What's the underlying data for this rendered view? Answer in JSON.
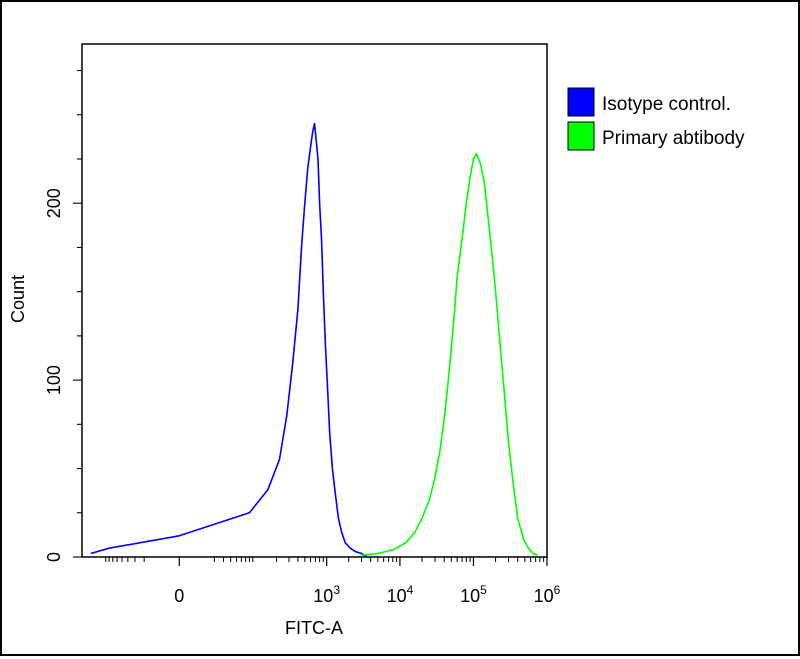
{
  "chart_data": {
    "type": "area",
    "title": "",
    "xlabel": "FITC-A",
    "ylabel": "Count",
    "x_scale": "biexponential",
    "xlim": [
      -200,
      1000000
    ],
    "ylim": [
      0,
      290
    ],
    "x_ticks": [
      {
        "value": 0,
        "base": "0",
        "exp": ""
      },
      {
        "value": 1000,
        "base": "10",
        "exp": "3"
      },
      {
        "value": 10000,
        "base": "10",
        "exp": "4"
      },
      {
        "value": 100000,
        "base": "10",
        "exp": "5"
      },
      {
        "value": 1000000,
        "base": "10",
        "exp": "6"
      }
    ],
    "y_ticks": [
      0,
      100,
      200
    ],
    "grid": false,
    "legend_position": "right",
    "series": [
      {
        "name": "Isotype control.",
        "color": "#0000ff",
        "fill": "none",
        "x": [
          -150,
          -80,
          0,
          80,
          150,
          220,
          280,
          340,
          400,
          450,
          500,
          550,
          600,
          640,
          680,
          720,
          760,
          800,
          850,
          900,
          960,
          1030,
          1100,
          1200,
          1320,
          1450,
          1600,
          1800,
          2100,
          2500,
          3000,
          3600
        ],
        "y": [
          2,
          5,
          12,
          25,
          38,
          55,
          80,
          110,
          140,
          175,
          200,
          220,
          232,
          240,
          245,
          235,
          225,
          200,
          180,
          150,
          120,
          95,
          70,
          50,
          35,
          22,
          14,
          8,
          5,
          3,
          2,
          0
        ]
      },
      {
        "name": "Primary abtibody",
        "color": "#00ff00",
        "fill": "none",
        "x": [
          3000,
          5000,
          8000,
          12000,
          16000,
          20000,
          25000,
          30000,
          35000,
          40000,
          45000,
          50000,
          55000,
          60000,
          70000,
          80000,
          90000,
          100000,
          110000,
          125000,
          140000,
          160000,
          180000,
          200000,
          230000,
          260000,
          300000,
          350000,
          400000,
          480000,
          560000,
          650000,
          750000
        ],
        "y": [
          1,
          2,
          4,
          8,
          14,
          22,
          32,
          45,
          60,
          78,
          98,
          118,
          138,
          158,
          180,
          200,
          215,
          225,
          228,
          222,
          212,
          190,
          170,
          150,
          120,
          95,
          65,
          40,
          22,
          10,
          5,
          2,
          1
        ]
      }
    ]
  }
}
